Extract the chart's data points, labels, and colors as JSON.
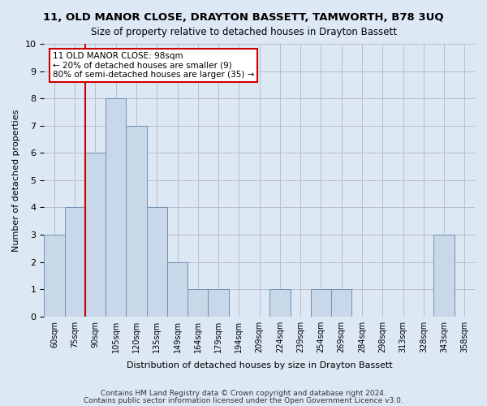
{
  "title": "11, OLD MANOR CLOSE, DRAYTON BASSETT, TAMWORTH, B78 3UQ",
  "subtitle": "Size of property relative to detached houses in Drayton Bassett",
  "xlabel": "Distribution of detached houses by size in Drayton Bassett",
  "ylabel": "Number of detached properties",
  "bin_labels": [
    "60sqm",
    "75sqm",
    "90sqm",
    "105sqm",
    "120sqm",
    "135sqm",
    "149sqm",
    "164sqm",
    "179sqm",
    "194sqm",
    "209sqm",
    "224sqm",
    "239sqm",
    "254sqm",
    "269sqm",
    "284sqm",
    "298sqm",
    "313sqm",
    "328sqm",
    "343sqm",
    "358sqm"
  ],
  "bar_values": [
    3,
    4,
    6,
    8,
    7,
    4,
    2,
    1,
    1,
    0,
    0,
    1,
    0,
    1,
    1,
    0,
    0,
    0,
    0,
    3,
    0
  ],
  "bar_color": "#c8d8e8",
  "bar_edge_color": "#7090b0",
  "vline_x": 1.5,
  "annotation_title": "11 OLD MANOR CLOSE: 98sqm",
  "annotation_line1": "← 20% of detached houses are smaller (9)",
  "annotation_line2": "80% of semi-detached houses are larger (35) →",
  "annotation_border_color": "#cc0000",
  "vline_color": "#cc0000",
  "ylim": [
    0,
    10
  ],
  "yticks": [
    0,
    1,
    2,
    3,
    4,
    5,
    6,
    7,
    8,
    9,
    10
  ],
  "footer1": "Contains HM Land Registry data © Crown copyright and database right 2024.",
  "footer2": "Contains public sector information licensed under the Open Government Licence v3.0.",
  "bg_color": "#dde8f5",
  "grid_color": "#bbbbcc"
}
